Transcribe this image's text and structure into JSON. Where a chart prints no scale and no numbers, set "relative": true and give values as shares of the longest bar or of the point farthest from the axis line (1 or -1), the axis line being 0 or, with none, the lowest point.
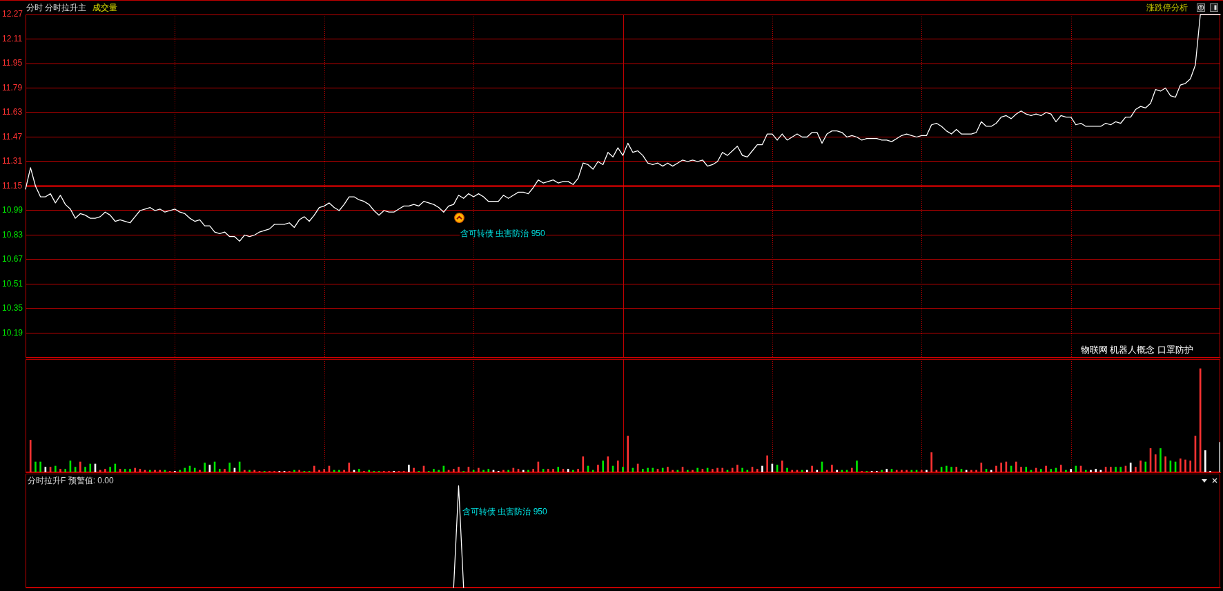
{
  "chart_data": [
    {
      "type": "line",
      "title": "分时 分时拉升主",
      "subtitle": "成交量",
      "categories": [
        null,
        null,
        null,
        null,
        null,
        null,
        null,
        null,
        null,
        null,
        null,
        null,
        null,
        null,
        null,
        null,
        null,
        null,
        null,
        null,
        null,
        null,
        null,
        null,
        null,
        null,
        null,
        null,
        null,
        null,
        null,
        null,
        null,
        null,
        null,
        null,
        null,
        null,
        null,
        null,
        null,
        null,
        null,
        null,
        null,
        null,
        null,
        null,
        null,
        null,
        null,
        null,
        null,
        null,
        null,
        null,
        null,
        null,
        null,
        null,
        null,
        null,
        null,
        null,
        null,
        null,
        null,
        null,
        null,
        null,
        null,
        null,
        null,
        null,
        null,
        null,
        null,
        null,
        null,
        null,
        null,
        null,
        null,
        null,
        null,
        null,
        null,
        null,
        null,
        null,
        null,
        null,
        null,
        null,
        null,
        null,
        null,
        null,
        null,
        null,
        null,
        null,
        null,
        null,
        null,
        null,
        null,
        null,
        null,
        null,
        null,
        null,
        null,
        null,
        null,
        null,
        null,
        null,
        null,
        null,
        null,
        null,
        null,
        null,
        null,
        null,
        null,
        null,
        null,
        null,
        null,
        null,
        null,
        null,
        null,
        null,
        null,
        null,
        null,
        null,
        null,
        null,
        null,
        null,
        null,
        null,
        null,
        null,
        null,
        null,
        null,
        null,
        null,
        null,
        null,
        null,
        null,
        null,
        null,
        null,
        null,
        null,
        null,
        null,
        null,
        null,
        null,
        null,
        null,
        null,
        null,
        null,
        null,
        null,
        null,
        null,
        null,
        null,
        null,
        null,
        null,
        null,
        null,
        null,
        null,
        null,
        null,
        null,
        null,
        null,
        null,
        null,
        null,
        null,
        null,
        null,
        null,
        null,
        null,
        null,
        null,
        null,
        null,
        null,
        null,
        null,
        null,
        null,
        null,
        null,
        null,
        null,
        null,
        null,
        null,
        null,
        null,
        null,
        null,
        null,
        null,
        null,
        null,
        null,
        null,
        null,
        null,
        null,
        null,
        null,
        null,
        null,
        null,
        null,
        null,
        null,
        null,
        null,
        null,
        null,
        null
      ],
      "series": [
        {
          "color": "#ffffff",
          "values": [
            11.13,
            11.27,
            11.15,
            11.08,
            11.08,
            11.1,
            11.04,
            11.09,
            11.03,
            11.0,
            10.94,
            10.97,
            10.96,
            10.94,
            10.94,
            10.95,
            10.98,
            10.96,
            10.92,
            10.93,
            10.92,
            10.91,
            10.95,
            10.99,
            11.0,
            11.01,
            10.99,
            11.0,
            10.98,
            10.99,
            11.0,
            10.98,
            10.97,
            10.94,
            10.92,
            10.93,
            10.89,
            10.89,
            10.85,
            10.84,
            10.85,
            10.82,
            10.82,
            10.79,
            10.83,
            10.82,
            10.83,
            10.85,
            10.86,
            10.87,
            10.9,
            10.9,
            10.9,
            10.91,
            10.88,
            10.93,
            10.95,
            10.92,
            10.96,
            11.01,
            11.02,
            11.04,
            11.01,
            10.99,
            11.03,
            11.08,
            11.08,
            11.06,
            11.05,
            11.03,
            10.99,
            10.96,
            10.99,
            10.98,
            10.98,
            11.0,
            11.02,
            11.02,
            11.03,
            11.02,
            11.05,
            11.04,
            11.03,
            11.01,
            10.98,
            11.02,
            11.03,
            11.09,
            11.07,
            11.1,
            11.08,
            11.1,
            11.08,
            11.05,
            11.05,
            11.05,
            11.09,
            11.07,
            11.09,
            11.11,
            11.11,
            11.1,
            11.14,
            11.19,
            11.17,
            11.18,
            11.19,
            11.17,
            11.18,
            11.18,
            11.16,
            11.2,
            11.3,
            11.29,
            11.26,
            11.31,
            11.29,
            11.37,
            11.34,
            11.4,
            11.35,
            11.43,
            11.37,
            11.38,
            11.35,
            11.3,
            11.29,
            11.3,
            11.28,
            11.3,
            11.28,
            11.3,
            11.32,
            11.31,
            11.32,
            11.31,
            11.32,
            11.28,
            11.29,
            11.31,
            11.37,
            11.35,
            11.38,
            11.41,
            11.35,
            11.34,
            11.38,
            11.42,
            11.42,
            11.49,
            11.49,
            11.45,
            11.49,
            11.45,
            11.47,
            11.49,
            11.47,
            11.47,
            11.5,
            11.5,
            11.43,
            11.49,
            11.51,
            11.51,
            11.5,
            11.47,
            11.48,
            11.47,
            11.45,
            11.46,
            11.46,
            11.46,
            11.45,
            11.45,
            11.44,
            11.46,
            11.48,
            11.49,
            11.48,
            11.47,
            11.48,
            11.48,
            11.55,
            11.56,
            11.54,
            11.51,
            11.49,
            11.52,
            11.49,
            11.49,
            11.49,
            11.5,
            11.57,
            11.54,
            11.54,
            11.56,
            11.6,
            11.61,
            11.59,
            11.62,
            11.64,
            11.62,
            11.61,
            11.62,
            11.61,
            11.63,
            11.62,
            11.57,
            11.61,
            11.6,
            11.6,
            11.55,
            11.56,
            11.54,
            11.54,
            11.54,
            11.54,
            11.56,
            11.55,
            11.57,
            11.56,
            11.6,
            11.6,
            11.65,
            11.67,
            11.66,
            11.69,
            11.78,
            11.77,
            11.79,
            11.74,
            11.73,
            11.81,
            11.82,
            11.85,
            11.94,
            12.27,
            12.27,
            12.27,
            12.27,
            12.27
          ]
        }
      ],
      "ylim": [
        10.03,
        12.27
      ],
      "yticks": [
        10.19,
        10.35,
        10.51,
        10.67,
        10.83,
        10.99,
        11.15,
        11.31,
        11.47,
        11.63,
        11.79,
        11.95,
        12.11,
        12.27
      ],
      "grid": true,
      "tick_labels": "y",
      "ref_lines": [
        {
          "axis": "y",
          "value": 11.15,
          "color": "#ff0000"
        }
      ],
      "annotations": [
        "涨跌停分析",
        "含可转债 虫害防治 950",
        "物联网 机器人概念 口罩防护"
      ]
    },
    {
      "type": "bar",
      "relative": true,
      "grid": "x",
      "tick_labels": false,
      "categories": [
        null,
        null,
        null,
        null,
        null,
        null,
        null,
        null,
        null,
        null,
        null,
        null,
        null,
        null,
        null,
        null,
        null,
        null,
        null,
        null,
        null,
        null,
        null,
        null,
        null,
        null,
        null,
        null,
        null,
        null,
        null,
        null,
        null,
        null,
        null,
        null,
        null,
        null,
        null,
        null,
        null,
        null,
        null,
        null,
        null,
        null,
        null,
        null,
        null,
        null,
        null,
        null,
        null,
        null,
        null,
        null,
        null,
        null,
        null,
        null,
        null,
        null,
        null,
        null,
        null,
        null,
        null,
        null,
        null,
        null,
        null,
        null,
        null,
        null,
        null,
        null,
        null,
        null,
        null,
        null,
        null,
        null,
        null,
        null,
        null,
        null,
        null,
        null,
        null,
        null,
        null,
        null,
        null,
        null,
        null,
        null,
        null,
        null,
        null,
        null,
        null,
        null,
        null,
        null,
        null,
        null,
        null,
        null,
        null,
        null,
        null,
        null,
        null,
        null,
        null,
        null,
        null,
        null,
        null,
        null,
        null,
        null,
        null,
        null,
        null,
        null,
        null,
        null,
        null,
        null,
        null,
        null,
        null,
        null,
        null,
        null,
        null,
        null,
        null,
        null,
        null,
        null,
        null,
        null,
        null,
        null,
        null,
        null,
        null,
        null,
        null,
        null,
        null,
        null,
        null,
        null,
        null,
        null,
        null,
        null,
        null,
        null,
        null,
        null,
        null,
        null,
        null,
        null,
        null,
        null,
        null,
        null,
        null,
        null,
        null,
        null,
        null,
        null,
        null,
        null,
        null,
        null,
        null,
        null,
        null,
        null,
        null,
        null,
        null,
        null,
        null,
        null,
        null,
        null,
        null,
        null,
        null,
        null,
        null,
        null,
        null,
        null,
        null,
        null,
        null,
        null,
        null,
        null,
        null,
        null,
        null,
        null,
        null,
        null,
        null,
        null,
        null,
        null,
        null,
        null,
        null,
        null,
        null,
        null,
        null,
        null,
        null,
        null,
        null,
        null,
        null,
        null,
        null,
        null,
        null,
        null,
        null,
        null,
        null,
        null,
        null
      ],
      "values": [
        null,
        0.31,
        0.1,
        0.1,
        0.05,
        0.05,
        0.06,
        0.03,
        0.03,
        0.11,
        0.05,
        0.1,
        0.05,
        0.08,
        0.08,
        0.02,
        0.03,
        0.05,
        0.08,
        0.03,
        0.03,
        0.03,
        0.04,
        0.03,
        0.02,
        0.02,
        0.02,
        0.02,
        0.02,
        0.01,
        0.01,
        0.02,
        0.04,
        0.06,
        0.04,
        0.02,
        0.09,
        0.07,
        0.1,
        0.03,
        0.03,
        0.09,
        0.04,
        0.1,
        0.02,
        0.02,
        0.02,
        0.01,
        0.01,
        0.01,
        0.01,
        0.01,
        0.01,
        0.01,
        0.02,
        0.02,
        0.01,
        0.01,
        0.06,
        0.02,
        0.03,
        0.06,
        0.02,
        0.02,
        0.02,
        0.09,
        0.02,
        0.03,
        0.01,
        0.02,
        0.01,
        0.01,
        0.01,
        0.01,
        0.01,
        0.01,
        0.01,
        0.07,
        0.04,
        0.01,
        0.06,
        0.01,
        0.03,
        0.02,
        0.06,
        0.02,
        0.03,
        0.05,
        0.01,
        0.05,
        0.02,
        0.04,
        0.02,
        0.03,
        0.02,
        0.01,
        0.02,
        0.02,
        0.04,
        0.03,
        0.02,
        0.02,
        0.03,
        0.1,
        0.03,
        0.03,
        0.03,
        0.05,
        0.03,
        0.03,
        0.02,
        0.03,
        0.15,
        0.06,
        0.02,
        0.07,
        0.11,
        0.15,
        0.06,
        0.11,
        0.05,
        0.35,
        0.04,
        0.08,
        0.03,
        0.04,
        0.04,
        0.03,
        0.04,
        0.05,
        0.02,
        0.02,
        0.05,
        0.02,
        0.02,
        0.04,
        0.03,
        0.04,
        0.03,
        0.04,
        0.04,
        0.02,
        0.04,
        0.07,
        0.04,
        0.02,
        0.05,
        0.03,
        0.06,
        0.16,
        0.08,
        0.07,
        0.11,
        0.04,
        0.02,
        0.02,
        0.02,
        0.02,
        0.06,
        0.02,
        0.1,
        0.02,
        0.07,
        0.02,
        0.02,
        0.02,
        0.04,
        0.11,
        0.01,
        0.01,
        0.01,
        0.01,
        0.02,
        0.03,
        0.03,
        0.02,
        0.02,
        0.02,
        0.02,
        0.02,
        0.02,
        0.02,
        0.19,
        0.02,
        0.05,
        0.06,
        0.05,
        0.05,
        0.03,
        0.02,
        0.02,
        0.02,
        0.09,
        0.03,
        0.02,
        0.06,
        0.09,
        0.1,
        0.06,
        0.1,
        0.05,
        0.05,
        0.02,
        0.04,
        0.03,
        0.06,
        0.03,
        0.04,
        0.07,
        0.02,
        0.03,
        0.06,
        0.06,
        0.02,
        0.02,
        0.03,
        0.02,
        0.05,
        0.05,
        0.05,
        0.05,
        0.06,
        0.09,
        0.05,
        0.11,
        0.1,
        0.23,
        0.17,
        0.23,
        0.15,
        0.11,
        0.1,
        0.13,
        0.12,
        0.11,
        0.35,
        1,
        0.21,
        0.01,
        null,
        0.29
      ],
      "colors": [
        null,
        "#ff3232",
        "#00e600",
        "#00e600",
        "#ffffff",
        "#ff3232",
        "#00e600",
        "#ff3232",
        "#00e600",
        "#00e600",
        "#00e600",
        "#ff3232",
        "#00e600",
        "#00e600",
        "#ffffff",
        "#ff3232",
        "#ff3232",
        "#00e600",
        "#00e600",
        "#ff3232",
        "#00e600",
        "#00e600",
        "#ff3232",
        "#ff3232",
        "#ff3232",
        "#00e600",
        "#ff3232",
        "#ff3232",
        "#00e600",
        "#ff3232",
        "#ffffff",
        "#00e600",
        "#00e600",
        "#00e600",
        "#00e600",
        "#ff3232",
        "#00e600",
        "#ffffff",
        "#00e600",
        "#00e600",
        "#ff3232",
        "#00e600",
        "#ffffff",
        "#00e600",
        "#ff3232",
        "#00e600",
        "#ff3232",
        "#ff3232",
        "#00e600",
        "#ff3232",
        "#ff3232",
        "#ffffff",
        "#ffffff",
        "#ff3232",
        "#00e600",
        "#ff3232",
        "#00e600",
        "#00e600",
        "#ff3232",
        "#ff3232",
        "#ff3232",
        "#ff3232",
        "#00e600",
        "#00e600",
        "#ff3232",
        "#ff3232",
        "#ffffff",
        "#00e600",
        "#ff3232",
        "#00e600",
        "#00e600",
        "#00e600",
        "#ff3232",
        "#ff3232",
        "#ffffff",
        "#ff3232",
        "#ff3232",
        "#ffffff",
        "#ff3232",
        "#00e600",
        "#ff3232",
        "#00e600",
        "#00e600",
        "#00e600",
        "#00e600",
        "#ff3232",
        "#ff3232",
        "#ff3232",
        "#00e600",
        "#ff3232",
        "#00e600",
        "#ff3232",
        "#00e600",
        "#00e600",
        "#ffffff",
        "#ffffff",
        "#ff3232",
        "#00e600",
        "#ff3232",
        "#ff3232",
        "#ffffff",
        "#00e600",
        "#ff3232",
        "#ff3232",
        "#00e600",
        "#ff3232",
        "#ff3232",
        "#00e600",
        "#ff3232",
        "#ffffff",
        "#00e600",
        "#ff3232",
        "#ff3232",
        "#00e600",
        "#00e600",
        "#ff3232",
        "#00e600",
        "#ff3232",
        "#00e600",
        "#ff3232",
        "#00e600",
        "#ff3232",
        "#00e600",
        "#ff3232",
        "#00e600",
        "#00e600",
        "#00e600",
        "#ff3232",
        "#00e600",
        "#ff3232",
        "#ff3232",
        "#00e600",
        "#ff3232",
        "#00e600",
        "#ff3232",
        "#00e600",
        "#ff3232",
        "#00e600",
        "#ff3232",
        "#ff3232",
        "#ff3232",
        "#00e600",
        "#ff3232",
        "#ff3232",
        "#00e600",
        "#00e600",
        "#ff3232",
        "#ff3232",
        "#ffffff",
        "#ff3232",
        "#ffffff",
        "#00e600",
        "#ff3232",
        "#00e600",
        "#ff3232",
        "#ff3232",
        "#00e600",
        "#ffffff",
        "#ff3232",
        "#ffffff",
        "#00e600",
        "#ff3232",
        "#ff3232",
        "#ffffff",
        "#00e600",
        "#00e600",
        "#ff3232",
        "#00e600",
        "#ff3232",
        "#00e600",
        "#ffffff",
        "#ffffff",
        "#00e600",
        "#ffffff",
        "#00e600",
        "#ff3232",
        "#ff3232",
        "#ff3232",
        "#00e600",
        "#00e600",
        "#ff3232",
        "#ffffff",
        "#ff3232",
        "#ff3232",
        "#00e600",
        "#00e600",
        "#00e600",
        "#ff3232",
        "#00e600",
        "#ffffff",
        "#ff3232",
        "#ff3232",
        "#ff3232",
        "#00e600",
        "#ffffff",
        "#ff3232",
        "#ff3232",
        "#ff3232",
        "#00e600",
        "#ff3232",
        "#ff3232",
        "#00e600",
        "#00e600",
        "#ff3232",
        "#00e600",
        "#ff3232",
        "#00e600",
        "#00e600",
        "#ff3232",
        "#00e600",
        "#ffffff",
        "#00e600",
        "#ff3232",
        "#00e600",
        "#ffffff",
        "#ffffff",
        "#ffffff",
        "#ff3232",
        "#ff3232",
        "#00e600",
        "#00e600",
        "#ff3232",
        "#ffffff",
        "#ff3232",
        "#ff3232",
        "#00e600",
        "#ff3232",
        "#ff3232",
        "#00e600",
        "#ff3232",
        "#00e600",
        "#00e600",
        "#ff3232",
        "#ff3232",
        "#ff3232",
        "#ff3232",
        "#ff3232",
        "#ffffff",
        "#ffffff",
        null,
        "#ffffff"
      ]
    },
    {
      "type": "line",
      "title": "分时拉升F 预警值: 0.00",
      "relative": true,
      "tick_labels": false,
      "categories": [
        null,
        null,
        null,
        null,
        null,
        null,
        null,
        null,
        null,
        null,
        null,
        null,
        null,
        null,
        null,
        null,
        null,
        null,
        null,
        null,
        null,
        null,
        null,
        null,
        null,
        null,
        null,
        null,
        null,
        null,
        null,
        null,
        null,
        null,
        null,
        null,
        null,
        null,
        null,
        null,
        null,
        null,
        null,
        null,
        null,
        null,
        null,
        null,
        null,
        null,
        null,
        null,
        null,
        null,
        null,
        null,
        null,
        null,
        null,
        null,
        null,
        null,
        null,
        null,
        null,
        null,
        null,
        null,
        null,
        null,
        null,
        null,
        null,
        null,
        null,
        null,
        null,
        null,
        null,
        null,
        null,
        null,
        null,
        null,
        null,
        null,
        null,
        null,
        null,
        null,
        null,
        null,
        null,
        null,
        null,
        null,
        null,
        null,
        null,
        null,
        null,
        null,
        null,
        null,
        null,
        null,
        null,
        null,
        null,
        null,
        null,
        null,
        null,
        null,
        null,
        null,
        null,
        null,
        null,
        null,
        null,
        null,
        null,
        null,
        null,
        null,
        null,
        null,
        null,
        null,
        null,
        null,
        null,
        null,
        null,
        null,
        null,
        null,
        null,
        null,
        null,
        null,
        null,
        null,
        null,
        null,
        null,
        null,
        null,
        null,
        null,
        null,
        null,
        null,
        null,
        null,
        null,
        null,
        null,
        null,
        null,
        null,
        null,
        null,
        null,
        null,
        null,
        null,
        null,
        null,
        null,
        null,
        null,
        null,
        null,
        null,
        null,
        null,
        null,
        null,
        null,
        null,
        null,
        null,
        null,
        null,
        null,
        null,
        null,
        null,
        null,
        null,
        null,
        null,
        null,
        null,
        null,
        null,
        null,
        null,
        null,
        null,
        null,
        null,
        null,
        null,
        null,
        null,
        null,
        null,
        null,
        null,
        null,
        null,
        null,
        null,
        null,
        null,
        null,
        null,
        null,
        null,
        null,
        null,
        null,
        null,
        null,
        null,
        null,
        null,
        null,
        null,
        null,
        null,
        null,
        null,
        null,
        null,
        null,
        null,
        null
      ],
      "series": [
        {
          "color": "#ffffff",
          "values": [
            null,
            null,
            null,
            null,
            null,
            null,
            null,
            null,
            null,
            null,
            null,
            null,
            null,
            null,
            null,
            null,
            null,
            null,
            null,
            null,
            null,
            null,
            null,
            null,
            null,
            null,
            null,
            null,
            null,
            null,
            null,
            null,
            null,
            null,
            null,
            null,
            null,
            null,
            null,
            null,
            null,
            null,
            null,
            null,
            null,
            null,
            null,
            null,
            null,
            null,
            null,
            null,
            null,
            null,
            null,
            null,
            null,
            null,
            null,
            null,
            null,
            null,
            null,
            null,
            null,
            null,
            null,
            null,
            null,
            null,
            null,
            null,
            null,
            null,
            null,
            null,
            null,
            null,
            null,
            null,
            null,
            null,
            null,
            null,
            null,
            null,
            0,
            1,
            0,
            null,
            null,
            null,
            null,
            null,
            null,
            null,
            null,
            null,
            null,
            null,
            null,
            null,
            null,
            null,
            null,
            null,
            null,
            null,
            null,
            null,
            null,
            null,
            null,
            null,
            null,
            null,
            null,
            null,
            null,
            null,
            null,
            null,
            null,
            null,
            null,
            null,
            null,
            null,
            null,
            null,
            null,
            null,
            null,
            null,
            null,
            null,
            null,
            null,
            null,
            null,
            null,
            null,
            null,
            null,
            null,
            null,
            null,
            null,
            null,
            null,
            null,
            null,
            null,
            null,
            null,
            null,
            null,
            null,
            null,
            null,
            null,
            null,
            null,
            null,
            null,
            null,
            null,
            null,
            null,
            null,
            null,
            null,
            null,
            null,
            null,
            null,
            null,
            null,
            null,
            null,
            null,
            null,
            null,
            null,
            null,
            null,
            null,
            null,
            null,
            null,
            null,
            null,
            null,
            null,
            null,
            null,
            null,
            null,
            null,
            null,
            null,
            null,
            null,
            null,
            null,
            null,
            null,
            null,
            null,
            null,
            null,
            null,
            null,
            null,
            null,
            null,
            null,
            null,
            null,
            null,
            null,
            null,
            null,
            null,
            null,
            null,
            null,
            null,
            null,
            null,
            null,
            null,
            null,
            null,
            null,
            null,
            null,
            null,
            null,
            null,
            null
          ]
        }
      ],
      "annotations": [
        "含可转债 虫害防治 950"
      ]
    }
  ]
}
